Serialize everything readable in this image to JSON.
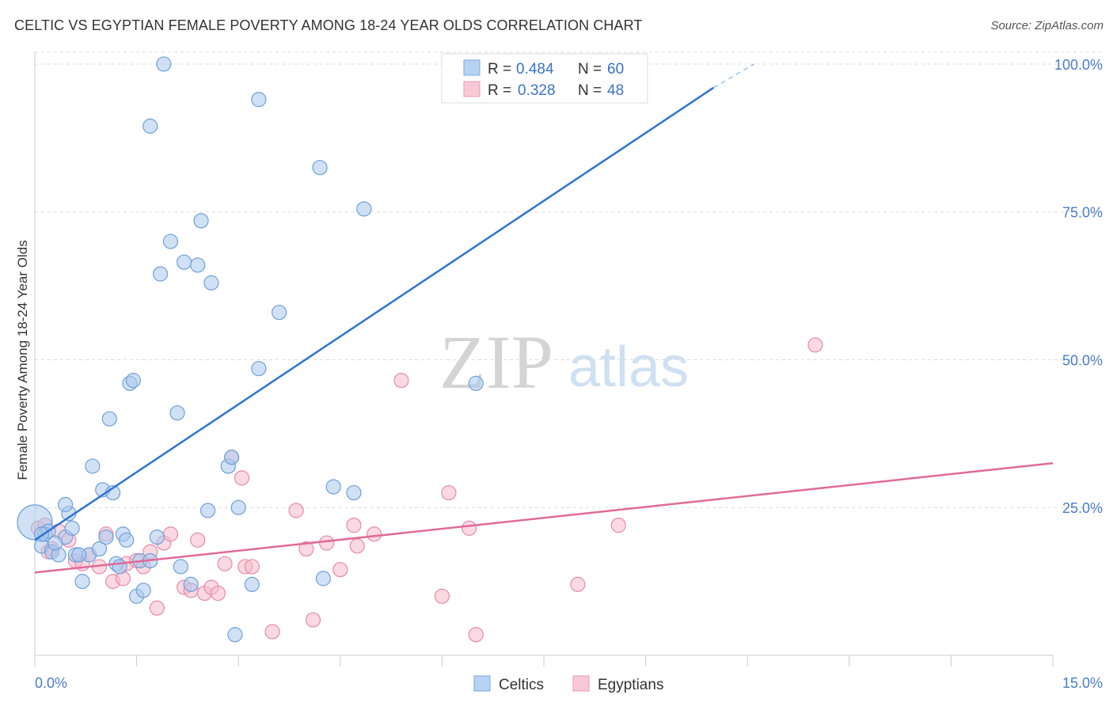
{
  "title": "CELTIC VS EGYPTIAN FEMALE POVERTY AMONG 18-24 YEAR OLDS CORRELATION CHART",
  "source": "Source: ZipAtlas.com",
  "watermark": {
    "zip": "ZIP",
    "atlas": "atlas"
  },
  "legend_box": [
    {
      "r_label": "R =",
      "r_value": "0.484",
      "n_label": "N =",
      "n_value": "60"
    },
    {
      "r_label": "R =",
      "r_value": "0.328",
      "n_label": "N =",
      "n_value": "48"
    }
  ],
  "bottom_legend": [
    "Celtics",
    "Egyptians"
  ],
  "colors": {
    "celtics_fill": "#a9c8ee",
    "celtics_stroke": "#6f9fd8",
    "celtics_line": "#2e74d0",
    "egyptians_fill": "#f6b9cc",
    "egyptians_stroke": "#e68aa8",
    "egyptians_line": "#e06b97",
    "axis_value": "#4a7cc7",
    "grid": "#dcdcdc"
  },
  "chart_data": {
    "type": "scatter",
    "title": "CELTIC VS EGYPTIAN FEMALE POVERTY AMONG 18-24 YEAR OLDS CORRELATION CHART",
    "xlabel": "",
    "ylabel": "Female Poverty Among 18-24 Year Olds",
    "xlim": [
      0,
      15
    ],
    "ylim": [
      0,
      102
    ],
    "x_tick_labels": [
      "0.0%",
      "15.0%"
    ],
    "y_ticks": [
      25,
      50,
      75,
      100
    ],
    "y_tick_labels": [
      "25.0%",
      "50.0%",
      "75.0%",
      "100.0%"
    ],
    "grid": true,
    "legend_position": "top-center",
    "series": [
      {
        "name": "Celtics",
        "R": 0.484,
        "N": 60,
        "trend": {
          "x": [
            0.0,
            10.0
          ],
          "y": [
            19.5,
            96.0
          ],
          "dashed_to": [
            10.6,
            100.0
          ]
        },
        "points": [
          [
            0.0,
            22.5
          ],
          [
            0.1,
            18.5
          ],
          [
            0.15,
            20.5
          ],
          [
            0.2,
            21.0
          ],
          [
            0.25,
            17.5
          ],
          [
            0.35,
            17.0
          ],
          [
            0.45,
            20.0
          ],
          [
            0.5,
            24.0
          ],
          [
            0.55,
            21.5
          ],
          [
            0.6,
            17.0
          ],
          [
            0.7,
            12.5
          ],
          [
            0.8,
            17.0
          ],
          [
            0.85,
            32.0
          ],
          [
            0.95,
            18.0
          ],
          [
            1.0,
            28.0
          ],
          [
            1.05,
            20.0
          ],
          [
            1.15,
            27.5
          ],
          [
            1.2,
            15.5
          ],
          [
            1.3,
            20.5
          ],
          [
            1.35,
            19.5
          ],
          [
            1.1,
            40.0
          ],
          [
            1.4,
            46.0
          ],
          [
            1.45,
            46.5
          ],
          [
            1.5,
            10.0
          ],
          [
            1.55,
            16.0
          ],
          [
            1.6,
            11.0
          ],
          [
            1.7,
            16.0
          ],
          [
            1.8,
            20.0
          ],
          [
            1.85,
            64.5
          ],
          [
            1.9,
            100.0
          ],
          [
            2.0,
            70.0
          ],
          [
            2.1,
            41.0
          ],
          [
            2.15,
            15.0
          ],
          [
            2.2,
            66.5
          ],
          [
            2.3,
            12.0
          ],
          [
            2.4,
            66.0
          ],
          [
            2.45,
            73.5
          ],
          [
            2.55,
            24.5
          ],
          [
            2.6,
            63.0
          ],
          [
            2.85,
            32.0
          ],
          [
            2.9,
            33.5
          ],
          [
            2.95,
            3.5
          ],
          [
            3.0,
            25.0
          ],
          [
            3.2,
            12.0
          ],
          [
            3.3,
            48.5
          ],
          [
            3.3,
            94.0
          ],
          [
            3.6,
            58.0
          ],
          [
            4.2,
            82.5
          ],
          [
            4.25,
            13.0
          ],
          [
            4.4,
            28.5
          ],
          [
            4.7,
            27.5
          ],
          [
            4.85,
            75.5
          ],
          [
            6.5,
            46.0
          ],
          [
            7.0,
            100.0
          ],
          [
            1.7,
            89.5
          ],
          [
            0.45,
            25.5
          ],
          [
            0.65,
            17.0
          ],
          [
            0.3,
            19.0
          ],
          [
            1.25,
            15.0
          ],
          [
            0.1,
            20.5
          ]
        ]
      },
      {
        "name": "Egyptians",
        "R": 0.328,
        "N": 48,
        "trend": {
          "x": [
            0.0,
            15.0
          ],
          "y": [
            14.0,
            32.5
          ]
        },
        "points": [
          [
            0.05,
            21.5
          ],
          [
            0.15,
            22.0
          ],
          [
            0.25,
            18.0
          ],
          [
            0.35,
            21.0
          ],
          [
            0.5,
            19.5
          ],
          [
            0.6,
            16.0
          ],
          [
            0.7,
            15.5
          ],
          [
            0.8,
            17.0
          ],
          [
            0.95,
            15.0
          ],
          [
            1.05,
            20.5
          ],
          [
            1.15,
            12.5
          ],
          [
            1.3,
            13.0
          ],
          [
            1.35,
            15.5
          ],
          [
            1.5,
            16.0
          ],
          [
            1.6,
            15.0
          ],
          [
            1.7,
            17.5
          ],
          [
            1.8,
            8.0
          ],
          [
            1.9,
            19.0
          ],
          [
            2.0,
            20.5
          ],
          [
            2.2,
            11.5
          ],
          [
            2.3,
            11.0
          ],
          [
            2.4,
            19.5
          ],
          [
            2.5,
            10.5
          ],
          [
            2.6,
            11.5
          ],
          [
            2.7,
            10.5
          ],
          [
            2.8,
            15.5
          ],
          [
            2.9,
            33.5
          ],
          [
            3.05,
            30.0
          ],
          [
            3.1,
            15.0
          ],
          [
            3.2,
            15.0
          ],
          [
            3.5,
            4.0
          ],
          [
            3.85,
            24.5
          ],
          [
            4.0,
            18.0
          ],
          [
            4.1,
            6.0
          ],
          [
            4.3,
            19.0
          ],
          [
            4.5,
            14.5
          ],
          [
            4.7,
            22.0
          ],
          [
            4.75,
            18.5
          ],
          [
            5.0,
            20.5
          ],
          [
            5.4,
            46.5
          ],
          [
            6.0,
            10.0
          ],
          [
            6.1,
            27.5
          ],
          [
            6.4,
            21.5
          ],
          [
            6.5,
            3.5
          ],
          [
            8.0,
            12.0
          ],
          [
            8.6,
            22.0
          ],
          [
            11.5,
            52.5
          ],
          [
            0.2,
            17.5
          ]
        ]
      }
    ]
  }
}
